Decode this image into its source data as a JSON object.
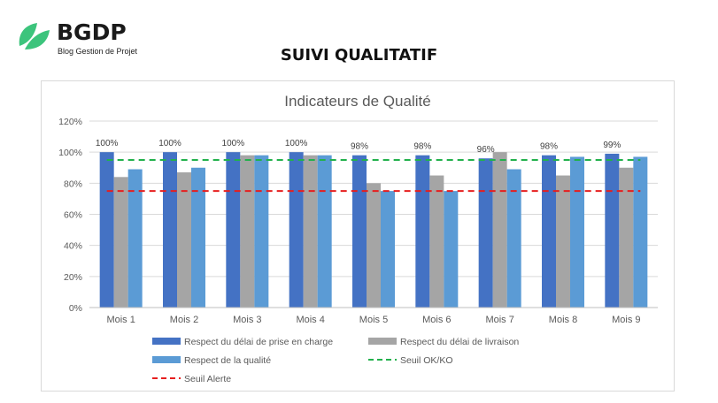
{
  "logo": {
    "name": "BGDP",
    "tagline": "Blog Gestion de Projet"
  },
  "page": {
    "title": "SUIVI QUALITATIF"
  },
  "colors": {
    "series1": "#4472c4",
    "series2": "#a5a5a5",
    "series3": "#5b9bd5",
    "seuil_ok": "#22b14c",
    "seuil_alerte": "#e61e1e",
    "grid": "#d9d9d9",
    "logo_green": "#3cc47c"
  },
  "chart_data": {
    "type": "bar",
    "title": "Indicateurs de Qualité",
    "categories": [
      "Mois 1",
      "Mois 2",
      "Mois 3",
      "Mois 4",
      "Mois 5",
      "Mois 6",
      "Mois 7",
      "Mois 8",
      "Mois 9"
    ],
    "series": [
      {
        "name": "Respect du délai de prise en charge",
        "values": [
          100,
          100,
          100,
          100,
          98,
          98,
          96,
          98,
          99
        ],
        "data_labels": [
          "100%",
          "100%",
          "100%",
          "100%",
          "98%",
          "98%",
          "96%",
          "98%",
          "99%"
        ]
      },
      {
        "name": "Respect du délai de livraison",
        "values": [
          84,
          87,
          98,
          98,
          80,
          85,
          100,
          85,
          90
        ]
      },
      {
        "name": "Respect de la qualité",
        "values": [
          89,
          90,
          98,
          98,
          75,
          75,
          89,
          97,
          97
        ]
      }
    ],
    "lines": [
      {
        "name": "Seuil OK/KO",
        "value": 95,
        "style": "dashed"
      },
      {
        "name": "Seuil Alerte",
        "value": 75,
        "style": "dashed"
      }
    ],
    "ylim": [
      0,
      120
    ],
    "yticks": [
      "0%",
      "20%",
      "40%",
      "60%",
      "80%",
      "100%",
      "120%"
    ],
    "ytick_values": [
      0,
      20,
      40,
      60,
      80,
      100,
      120
    ],
    "grid": true,
    "legend_position": "bottom"
  }
}
